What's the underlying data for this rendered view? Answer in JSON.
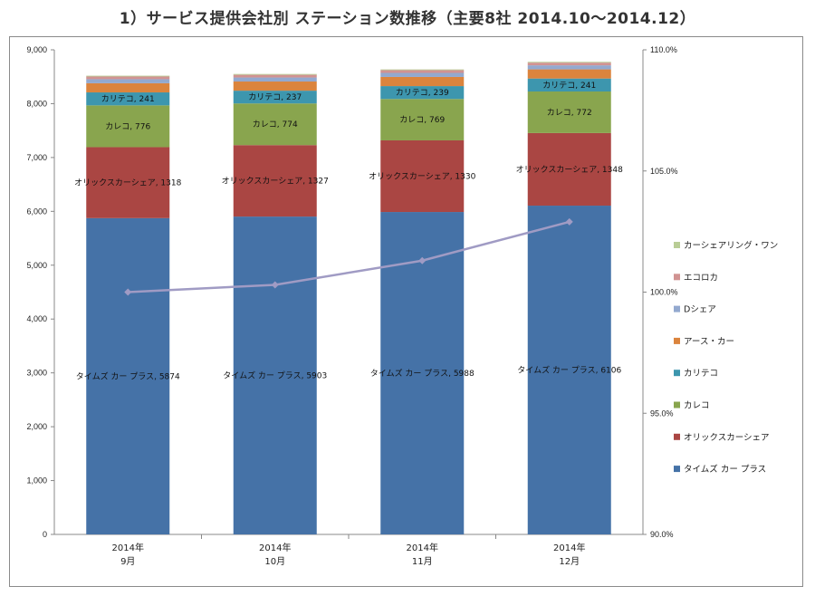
{
  "page_title": "1）サービス提供会社別 ステーション数推移（主要8社 2014.10～2014.12）",
  "chart_data": {
    "type": "bar",
    "stacked": true,
    "title": "1）サービス提供会社別 ステーション数推移（主要8社 2014.10～2014.12）",
    "categories": [
      "2014年\n9月",
      "2014年\n10月",
      "2014年\n11月",
      "2014年\n12月"
    ],
    "ylim": [
      0,
      9000
    ],
    "yticks": [
      0,
      1000,
      2000,
      3000,
      4000,
      5000,
      6000,
      7000,
      8000,
      9000
    ],
    "y2lim": [
      90.0,
      110.0
    ],
    "y2ticks": [
      "90.0%",
      "95.0%",
      "100.0%",
      "105.0%",
      "110.0%"
    ],
    "legend_position": "right",
    "grid": false,
    "series": [
      {
        "name": "タイムズ カー プラス",
        "color": "#4572a7",
        "values": [
          5874,
          5903,
          5988,
          6106
        ],
        "labels": true
      },
      {
        "name": "オリックスカーシェア",
        "color": "#aa4643",
        "values": [
          1318,
          1327,
          1330,
          1348
        ],
        "labels": true
      },
      {
        "name": "カレコ",
        "color": "#89a54e",
        "values": [
          776,
          774,
          769,
          772
        ],
        "labels": true
      },
      {
        "name": "カリテコ",
        "color": "#3d96ae",
        "values": [
          241,
          237,
          239,
          241
        ],
        "labels": true
      },
      {
        "name": "アース・カー",
        "color": "#db843d",
        "values": [
          170,
          170,
          170,
          170
        ],
        "labels": false
      },
      {
        "name": "Dシェア",
        "color": "#93a9cf",
        "values": [
          75,
          75,
          75,
          75
        ],
        "labels": false
      },
      {
        "name": "エコロカ",
        "color": "#d19392",
        "values": [
          50,
          50,
          50,
          50
        ],
        "labels": false
      },
      {
        "name": "カーシェアリング・ワン",
        "color": "#b9cd96",
        "values": [
          15,
          15,
          15,
          15
        ],
        "labels": false
      }
    ],
    "line": {
      "name": "",
      "color": "#a09bc4",
      "axis": "secondary",
      "values": [
        100.0,
        100.3,
        101.3,
        102.9
      ]
    },
    "legend_order": [
      "カーシェアリング・ワン",
      "エコロカ",
      "Dシェア",
      "アース・カー",
      "カリテコ",
      "カレコ",
      "オリックスカーシェア",
      "タイムズ カー プラス"
    ]
  }
}
